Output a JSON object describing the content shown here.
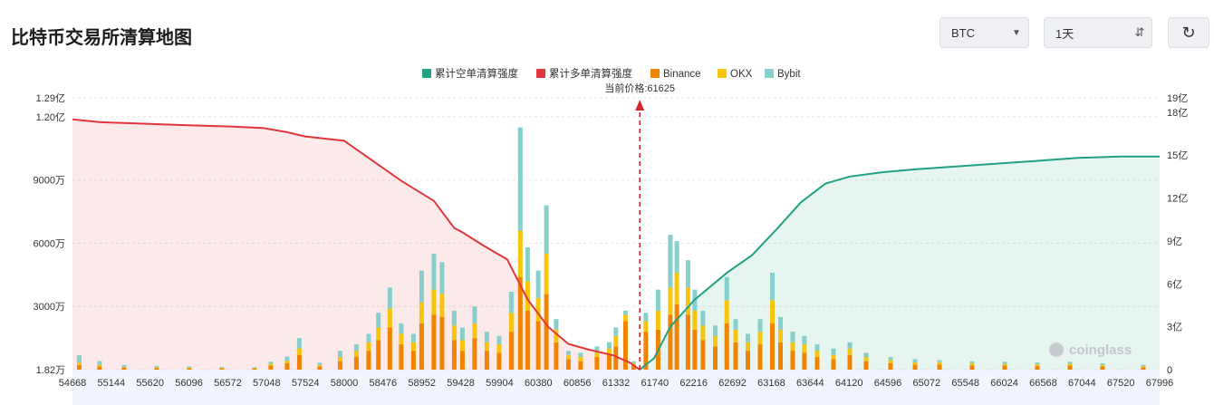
{
  "header": {
    "title": "比特币交易所清算地图",
    "coin_select": "BTC",
    "range_select": "1天"
  },
  "icons": {
    "coin_dropdown": "chevron-down-icon",
    "range_dropdown": "updown-arrows-icon",
    "refresh": "refresh-icon"
  },
  "watermark": "coinglass",
  "colors": {
    "short_cum": "#21a184",
    "long_cum": "#e0363c",
    "binance": "#f08300",
    "okx": "#f7c50b",
    "bybit": "#86cfcc"
  },
  "chart_data": {
    "type": "bar",
    "current_price_label": "当前价格:61625",
    "current_price": 61625,
    "legend": [
      "累计空单清算强度",
      "累计多单清算强度",
      "Binance",
      "OKX",
      "Bybit"
    ],
    "x_ticks": [
      "54668",
      "55144",
      "55620",
      "56096",
      "56572",
      "57048",
      "57524",
      "58000",
      "58476",
      "58952",
      "59428",
      "59904",
      "60380",
      "60856",
      "61332",
      "61740",
      "62216",
      "62692",
      "63168",
      "63644",
      "64120",
      "64596",
      "65072",
      "65548",
      "66024",
      "66568",
      "67044",
      "67520",
      "67996"
    ],
    "x_min": 54668,
    "x_max": 68000,
    "left_axis_ticks": [
      "1.82万",
      "3000万",
      "6000万",
      "9000万",
      "1.20亿",
      "1.29亿"
    ],
    "left_axis_values": [
      0,
      3000,
      6000,
      9000,
      12000,
      12900
    ],
    "right_axis_ticks": [
      "0",
      "3亿",
      "6亿",
      "9亿",
      "12亿",
      "15亿",
      "18亿",
      "19亿"
    ],
    "right_axis_values": [
      0,
      3,
      6,
      9,
      12,
      15,
      18,
      19
    ],
    "series": [
      {
        "name": "累计多单清算强度",
        "axis": "right",
        "x": [
          54668,
          55000,
          55500,
          56000,
          56600,
          57000,
          57300,
          57450,
          57524,
          58000,
          58300,
          58700,
          59100,
          59350,
          59450,
          59700,
          60000,
          60250,
          60500,
          60750,
          61000,
          61300,
          61500,
          61625
        ],
        "values": [
          17.5,
          17.3,
          17.2,
          17.1,
          17.0,
          16.9,
          16.6,
          16.4,
          16.3,
          16.0,
          14.8,
          13.2,
          11.8,
          9.9,
          9.6,
          8.7,
          7.7,
          4.9,
          3.0,
          1.8,
          1.4,
          1.0,
          0.5,
          0
        ]
      },
      {
        "name": "累计空单清算强度",
        "axis": "right",
        "x": [
          61625,
          61800,
          62000,
          62300,
          62700,
          63000,
          63300,
          63600,
          63900,
          64200,
          64600,
          65000,
          65500,
          66000,
          66500,
          67000,
          67520,
          68000
        ],
        "values": [
          0,
          0.8,
          3.0,
          4.9,
          6.8,
          8.0,
          9.8,
          11.7,
          13.0,
          13.5,
          13.8,
          14.0,
          14.2,
          14.4,
          14.6,
          14.8,
          14.9,
          14.9
        ]
      }
    ],
    "bars": [
      {
        "x": 54750,
        "binance": 220,
        "okx": 120,
        "bybit": 340
      },
      {
        "x": 55000,
        "binance": 150,
        "okx": 80,
        "bybit": 180
      },
      {
        "x": 55300,
        "binance": 90,
        "okx": 40,
        "bybit": 90
      },
      {
        "x": 55700,
        "binance": 80,
        "okx": 40,
        "bybit": 60
      },
      {
        "x": 56100,
        "binance": 70,
        "okx": 30,
        "bybit": 50
      },
      {
        "x": 56500,
        "binance": 60,
        "okx": 30,
        "bybit": 40
      },
      {
        "x": 56900,
        "binance": 60,
        "okx": 20,
        "bybit": 40
      },
      {
        "x": 57100,
        "binance": 200,
        "okx": 80,
        "bybit": 100
      },
      {
        "x": 57300,
        "binance": 300,
        "okx": 120,
        "bybit": 200
      },
      {
        "x": 57450,
        "binance": 700,
        "okx": 300,
        "bybit": 500
      },
      {
        "x": 57700,
        "binance": 150,
        "okx": 60,
        "bybit": 120
      },
      {
        "x": 57950,
        "binance": 400,
        "okx": 200,
        "bybit": 300
      },
      {
        "x": 58150,
        "binance": 600,
        "okx": 300,
        "bybit": 300
      },
      {
        "x": 58300,
        "binance": 900,
        "okx": 400,
        "bybit": 400
      },
      {
        "x": 58420,
        "binance": 1400,
        "okx": 600,
        "bybit": 700
      },
      {
        "x": 58560,
        "binance": 2000,
        "okx": 900,
        "bybit": 1000
      },
      {
        "x": 58700,
        "binance": 1200,
        "okx": 500,
        "bybit": 500
      },
      {
        "x": 58850,
        "binance": 900,
        "okx": 400,
        "bybit": 400
      },
      {
        "x": 58950,
        "binance": 2200,
        "okx": 1000,
        "bybit": 1500
      },
      {
        "x": 59100,
        "binance": 2600,
        "okx": 1200,
        "bybit": 1700
      },
      {
        "x": 59200,
        "binance": 2500,
        "okx": 1100,
        "bybit": 1500
      },
      {
        "x": 59350,
        "binance": 1400,
        "okx": 700,
        "bybit": 700
      },
      {
        "x": 59450,
        "binance": 900,
        "okx": 500,
        "bybit": 600
      },
      {
        "x": 59600,
        "binance": 1500,
        "okx": 700,
        "bybit": 800
      },
      {
        "x": 59750,
        "binance": 900,
        "okx": 400,
        "bybit": 500
      },
      {
        "x": 59900,
        "binance": 800,
        "okx": 400,
        "bybit": 400
      },
      {
        "x": 60050,
        "binance": 1800,
        "okx": 900,
        "bybit": 1000
      },
      {
        "x": 60160,
        "binance": 4400,
        "okx": 2200,
        "bybit": 4900
      },
      {
        "x": 60250,
        "binance": 2800,
        "okx": 1400,
        "bybit": 1600
      },
      {
        "x": 60380,
        "binance": 2300,
        "okx": 1100,
        "bybit": 1300
      },
      {
        "x": 60480,
        "binance": 3600,
        "okx": 1900,
        "bybit": 2300
      },
      {
        "x": 60600,
        "binance": 1300,
        "okx": 600,
        "bybit": 500
      },
      {
        "x": 60750,
        "binance": 500,
        "okx": 200,
        "bybit": 200
      },
      {
        "x": 60900,
        "binance": 400,
        "okx": 200,
        "bybit": 200
      },
      {
        "x": 61100,
        "binance": 600,
        "okx": 200,
        "bybit": 300
      },
      {
        "x": 61250,
        "binance": 700,
        "okx": 300,
        "bybit": 300
      },
      {
        "x": 61332,
        "binance": 1100,
        "okx": 500,
        "bybit": 400
      },
      {
        "x": 61450,
        "binance": 2300,
        "okx": 300,
        "bybit": 200
      },
      {
        "x": 61550,
        "binance": 200,
        "okx": 100,
        "bybit": 100
      },
      {
        "x": 61700,
        "binance": 1800,
        "okx": 500,
        "bybit": 400
      },
      {
        "x": 61850,
        "binance": 1900,
        "okx": 900,
        "bybit": 1000
      },
      {
        "x": 62000,
        "binance": 2600,
        "okx": 1300,
        "bybit": 2500
      },
      {
        "x": 62080,
        "binance": 3100,
        "okx": 1500,
        "bybit": 1500
      },
      {
        "x": 62216,
        "binance": 2600,
        "okx": 1300,
        "bybit": 1300
      },
      {
        "x": 62300,
        "binance": 1900,
        "okx": 900,
        "bybit": 1000
      },
      {
        "x": 62400,
        "binance": 1400,
        "okx": 700,
        "bybit": 700
      },
      {
        "x": 62550,
        "binance": 1100,
        "okx": 500,
        "bybit": 500
      },
      {
        "x": 62692,
        "binance": 2200,
        "okx": 1100,
        "bybit": 1100
      },
      {
        "x": 62800,
        "binance": 1300,
        "okx": 600,
        "bybit": 500
      },
      {
        "x": 62950,
        "binance": 900,
        "okx": 400,
        "bybit": 400
      },
      {
        "x": 63100,
        "binance": 1200,
        "okx": 600,
        "bybit": 600
      },
      {
        "x": 63250,
        "binance": 2200,
        "okx": 1100,
        "bybit": 1300
      },
      {
        "x": 63350,
        "binance": 1300,
        "okx": 600,
        "bybit": 600
      },
      {
        "x": 63500,
        "binance": 900,
        "okx": 400,
        "bybit": 500
      },
      {
        "x": 63644,
        "binance": 800,
        "okx": 400,
        "bybit": 400
      },
      {
        "x": 63800,
        "binance": 600,
        "okx": 300,
        "bybit": 300
      },
      {
        "x": 64000,
        "binance": 500,
        "okx": 200,
        "bybit": 300
      },
      {
        "x": 64200,
        "binance": 700,
        "okx": 300,
        "bybit": 300
      },
      {
        "x": 64400,
        "binance": 400,
        "okx": 200,
        "bybit": 200
      },
      {
        "x": 64700,
        "binance": 300,
        "okx": 150,
        "bybit": 150
      },
      {
        "x": 65000,
        "binance": 250,
        "okx": 100,
        "bybit": 150
      },
      {
        "x": 65300,
        "binance": 250,
        "okx": 100,
        "bybit": 100
      },
      {
        "x": 65700,
        "binance": 200,
        "okx": 100,
        "bybit": 100
      },
      {
        "x": 66100,
        "binance": 200,
        "okx": 80,
        "bybit": 100
      },
      {
        "x": 66500,
        "binance": 180,
        "okx": 80,
        "bybit": 80
      },
      {
        "x": 66900,
        "binance": 200,
        "okx": 80,
        "bybit": 100
      },
      {
        "x": 67300,
        "binance": 160,
        "okx": 60,
        "bybit": 80
      },
      {
        "x": 67800,
        "binance": 120,
        "okx": 50,
        "bybit": 60
      }
    ]
  }
}
